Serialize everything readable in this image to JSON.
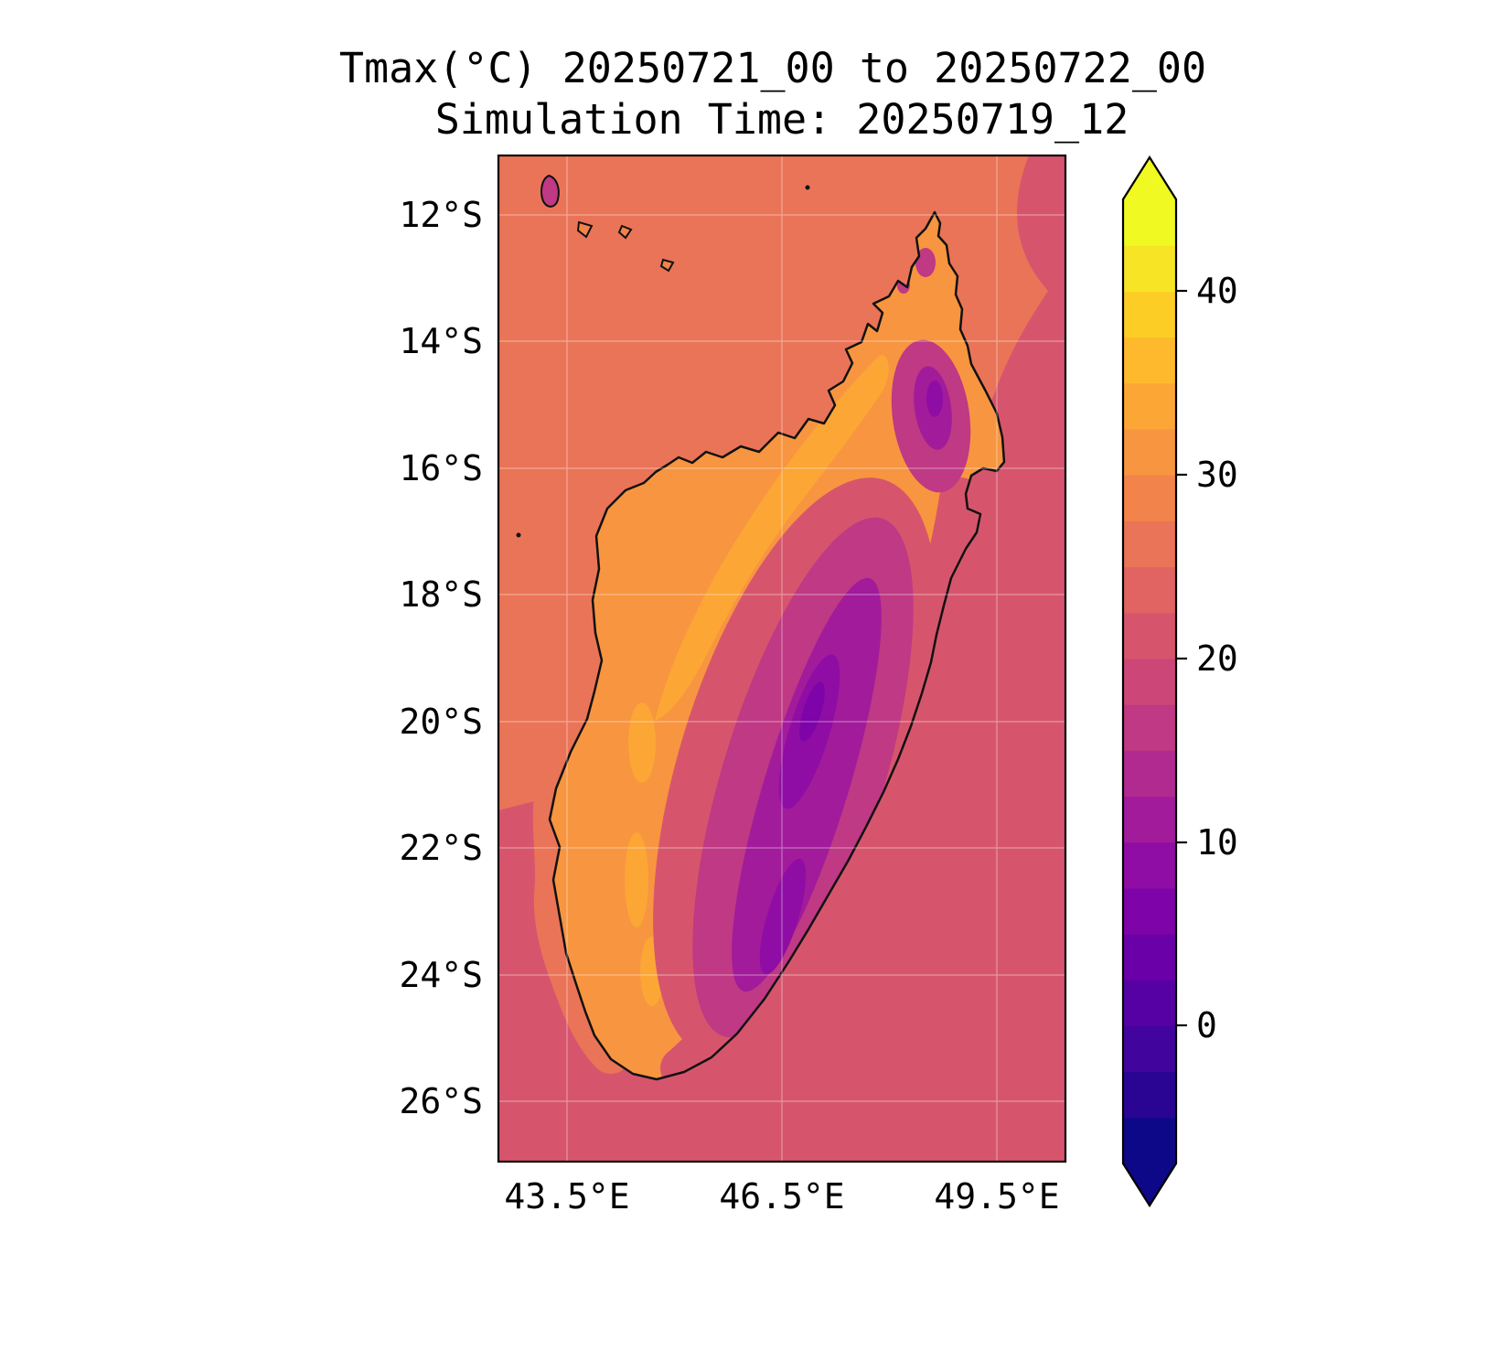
{
  "figure": {
    "title_line1": "Tmax(°C) 20250721_00 to 20250722_00",
    "title_line2": "Simulation Time: 20250719_12"
  },
  "map": {
    "lat_labels": [
      "12°S",
      "14°S",
      "16°S",
      "18°S",
      "20°S",
      "22°S",
      "24°S",
      "26°S"
    ],
    "lon_labels": [
      "43.5°E",
      "46.5°E",
      "49.5°E"
    ]
  },
  "palette": {
    "ocean_north": "#ea7457",
    "ocean_south": "#d6556d",
    "land_base": "#f89540",
    "land_warmest": "#fca636",
    "transition_pink": "#d6556d",
    "highland_magenta": "#bf3984",
    "highland_purple": "#a11b9b",
    "highland_deep_purple": "#8f0da4",
    "highland_core": "#7e03a8",
    "small_island_highland": "#bf3984",
    "small_island_land": "#f2844b",
    "coastline": "#111111"
  },
  "colorbar": {
    "tick_labels": [
      "40",
      "30",
      "20",
      "10",
      "0"
    ],
    "band_colors": [
      "#0d0887",
      "#2a0593",
      "#41049d",
      "#5601a4",
      "#6a00a8",
      "#7e03a8",
      "#8f0da4",
      "#a11b9b",
      "#b12a90",
      "#bf3984",
      "#cc4778",
      "#d6556d",
      "#e16462",
      "#ea7457",
      "#f2844b",
      "#f89540",
      "#fca636",
      "#feba2c",
      "#fcce25",
      "#f7e425",
      "#f0f921"
    ],
    "top_arrow_color": "#f0f921",
    "bottom_arrow_color": "#0d0887"
  },
  "chart_data": {
    "type": "heatmap",
    "title": "Tmax(°C) 20250721_00 to 20250722_00",
    "subtitle": "Simulation Time: 20250719_12",
    "variable": "Tmax",
    "units": "°C",
    "valid_period_start": "20250721_00",
    "valid_period_end": "20250722_00",
    "simulation_time": "20250719_12",
    "region": "Madagascar and surrounding ocean",
    "x_tick_labels": [
      "43.5°E",
      "46.5°E",
      "49.5°E"
    ],
    "y_tick_labels": [
      "12°S",
      "14°S",
      "16°S",
      "18°S",
      "20°S",
      "22°S",
      "24°S",
      "26°S"
    ],
    "approx_extent": {
      "lon_min_e": 42.5,
      "lon_max_e": 50.5,
      "lat_north_s": 11.0,
      "lat_south_s": 27.0
    },
    "colormap": "plasma",
    "contour_interval_c": 2.5,
    "colorbar_range_c": [
      -7.5,
      45
    ],
    "colorbar_tick_values_c": [
      0,
      10,
      20,
      30,
      40
    ],
    "colorbar_extends": "both",
    "grid": true,
    "features": [
      {
        "area": "ocean north / Mozambique Channel (north of ~19°S)",
        "tmax_c": "25-27.5"
      },
      {
        "area": "ocean south and east of Madagascar",
        "tmax_c": "20-25"
      },
      {
        "area": "western and northern coastal lowlands",
        "tmax_c": "30-35"
      },
      {
        "area": "central highlands spine (~18-24°S)",
        "tmax_c": "10-20"
      },
      {
        "area": "coldest plateau cores",
        "tmax_c": "5-10"
      },
      {
        "area": "northern massif (~14-15.5°S)",
        "tmax_c": "7.5-17.5"
      },
      {
        "area": "southeast coastal strip",
        "tmax_c": "20-25"
      },
      {
        "area": "small islands northwest (Comoros group)",
        "tmax_c": "15-30"
      }
    ]
  }
}
